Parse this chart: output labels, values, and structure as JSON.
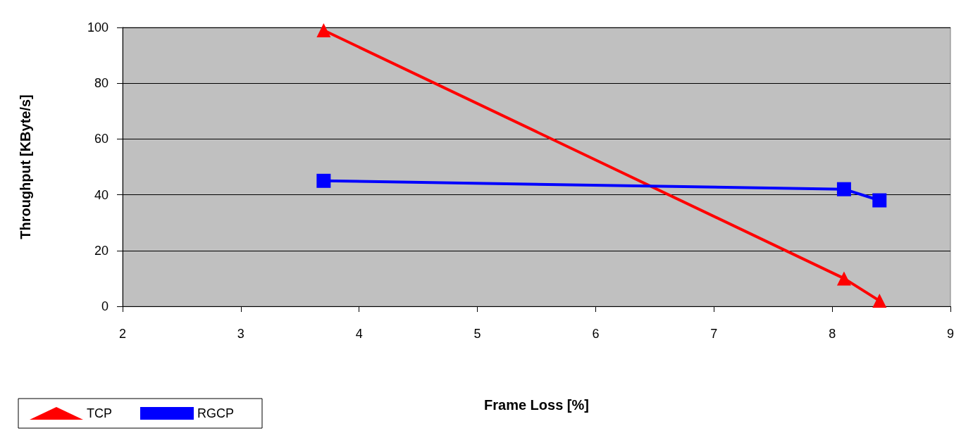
{
  "chart_data": {
    "type": "line",
    "xlabel": "Frame Loss [%]",
    "ylabel": "Throughput [KByte/s]",
    "xlim": [
      2,
      9
    ],
    "xticks": [
      2,
      3,
      4,
      5,
      6,
      7,
      8,
      9
    ],
    "ylim": [
      0,
      100
    ],
    "yticks": [
      0,
      20,
      40,
      60,
      80,
      100
    ],
    "grid": "y",
    "legend": "bottom left",
    "line_style": "solid",
    "series": [
      {
        "name": "TCP",
        "color": "#ff0000",
        "marker": "triangle",
        "x": [
          3.7,
          8.1,
          8.4
        ],
        "values": [
          99,
          10,
          2
        ]
      },
      {
        "name": "RGCP",
        "color": "#0000ff",
        "marker": "square",
        "x": [
          3.7,
          8.1,
          8.4
        ],
        "values": [
          45,
          42,
          38
        ]
      }
    ]
  }
}
